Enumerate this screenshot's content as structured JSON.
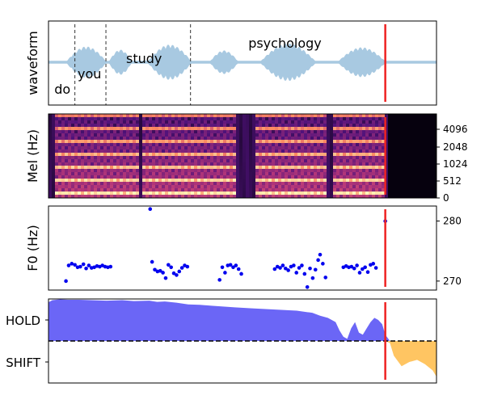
{
  "chart_data": [
    {
      "type": "area",
      "panel": "waveform",
      "ylabel": "waveform",
      "x_range": [
        0,
        1
      ],
      "y_range": [
        -1,
        1
      ],
      "words": [
        {
          "text": "do",
          "x": 0.015
        },
        {
          "text": "you",
          "x": 0.075
        },
        {
          "text": "study",
          "x": 0.2
        },
        {
          "text": "psychology",
          "x": 0.515
        }
      ],
      "word_boundaries": [
        0.068,
        0.148,
        0.366
      ],
      "current_position": 0.868,
      "colors": {
        "fill": "#a8c9e1",
        "boundary": "#333333",
        "cursor": "#ee2222"
      }
    },
    {
      "type": "heatmap",
      "panel": "mel-spectrogram",
      "ylabel": "Mel (Hz)",
      "y_ticks": [
        "0",
        "512",
        "1024",
        "2048",
        "4096"
      ],
      "current_position": 0.868,
      "colormap": "magma"
    },
    {
      "type": "scatter",
      "panel": "f0",
      "ylabel": "F0 (Hz)",
      "y_ticks": [
        270,
        280
      ],
      "ylim": [
        268.5,
        282.5
      ],
      "x_range": [
        0,
        1
      ],
      "points": [
        [
          0.045,
          270.0
        ],
        [
          0.052,
          272.6
        ],
        [
          0.06,
          272.9
        ],
        [
          0.068,
          272.7
        ],
        [
          0.075,
          272.3
        ],
        [
          0.082,
          272.4
        ],
        [
          0.09,
          272.8
        ],
        [
          0.097,
          272.1
        ],
        [
          0.104,
          272.6
        ],
        [
          0.111,
          272.2
        ],
        [
          0.118,
          272.3
        ],
        [
          0.125,
          272.5
        ],
        [
          0.132,
          272.4
        ],
        [
          0.139,
          272.6
        ],
        [
          0.146,
          272.4
        ],
        [
          0.153,
          272.3
        ],
        [
          0.16,
          272.4
        ],
        [
          0.262,
          282.0
        ],
        [
          0.267,
          273.2
        ],
        [
          0.274,
          271.9
        ],
        [
          0.281,
          271.6
        ],
        [
          0.288,
          271.7
        ],
        [
          0.295,
          271.4
        ],
        [
          0.302,
          270.5
        ],
        [
          0.309,
          272.7
        ],
        [
          0.316,
          272.3
        ],
        [
          0.323,
          271.3
        ],
        [
          0.33,
          271.0
        ],
        [
          0.337,
          271.6
        ],
        [
          0.344,
          272.2
        ],
        [
          0.351,
          272.6
        ],
        [
          0.358,
          272.4
        ],
        [
          0.441,
          270.2
        ],
        [
          0.448,
          272.3
        ],
        [
          0.455,
          271.4
        ],
        [
          0.462,
          272.6
        ],
        [
          0.469,
          272.7
        ],
        [
          0.476,
          272.3
        ],
        [
          0.483,
          272.6
        ],
        [
          0.49,
          272.0
        ],
        [
          0.497,
          271.2
        ],
        [
          0.583,
          272.0
        ],
        [
          0.59,
          272.4
        ],
        [
          0.597,
          272.2
        ],
        [
          0.604,
          272.6
        ],
        [
          0.611,
          272.1
        ],
        [
          0.618,
          271.8
        ],
        [
          0.625,
          272.4
        ],
        [
          0.632,
          272.6
        ],
        [
          0.639,
          271.4
        ],
        [
          0.646,
          272.2
        ],
        [
          0.653,
          272.6
        ],
        [
          0.66,
          271.2
        ],
        [
          0.667,
          269.0
        ],
        [
          0.674,
          272.1
        ],
        [
          0.681,
          270.5
        ],
        [
          0.688,
          271.9
        ],
        [
          0.695,
          273.5
        ],
        [
          0.7,
          274.4
        ],
        [
          0.707,
          272.9
        ],
        [
          0.714,
          270.6
        ],
        [
          0.76,
          272.3
        ],
        [
          0.767,
          272.5
        ],
        [
          0.774,
          272.3
        ],
        [
          0.781,
          272.4
        ],
        [
          0.788,
          272.1
        ],
        [
          0.795,
          272.6
        ],
        [
          0.802,
          271.4
        ],
        [
          0.809,
          272.0
        ],
        [
          0.816,
          272.3
        ],
        [
          0.823,
          271.5
        ],
        [
          0.83,
          272.7
        ],
        [
          0.837,
          272.9
        ],
        [
          0.844,
          272.2
        ],
        [
          0.868,
          280.0
        ]
      ],
      "current_position": 0.868,
      "colors": {
        "points": "#0000ee",
        "cursor": "#ee2222"
      }
    },
    {
      "type": "area",
      "panel": "turn-taking",
      "y_tick_labels": [
        "HOLD",
        "SHIFT"
      ],
      "x_range": [
        0,
        1
      ],
      "ylim": [
        -1,
        1
      ],
      "threshold": 0,
      "series": [
        {
          "x": [
            0.0,
            0.01,
            0.03,
            0.05,
            0.08,
            0.11,
            0.15,
            0.19,
            0.22,
            0.26,
            0.28,
            0.3,
            0.33,
            0.36,
            0.39,
            0.42,
            0.45,
            0.48,
            0.52,
            0.56,
            0.6,
            0.64,
            0.68,
            0.7,
            0.72,
            0.74,
            0.75,
            0.76,
            0.77,
            0.78,
            0.79,
            0.8,
            0.81,
            0.82,
            0.83,
            0.84,
            0.85,
            0.86,
            0.868,
            0.88,
            0.89,
            0.91,
            0.93,
            0.95,
            0.97,
            0.99,
            1.0
          ],
          "values": [
            0.92,
            0.97,
            0.99,
            0.98,
            0.98,
            0.97,
            0.96,
            0.97,
            0.95,
            0.96,
            0.93,
            0.94,
            0.91,
            0.87,
            0.86,
            0.84,
            0.82,
            0.8,
            0.78,
            0.76,
            0.74,
            0.72,
            0.67,
            0.6,
            0.55,
            0.45,
            0.25,
            0.1,
            0.05,
            0.3,
            0.45,
            0.2,
            0.15,
            0.3,
            0.45,
            0.55,
            0.5,
            0.4,
            0.15,
            -0.05,
            -0.35,
            -0.6,
            -0.5,
            -0.45,
            -0.55,
            -0.7,
            -0.85
          ]
        }
      ],
      "current_position": 0.868,
      "colors": {
        "hold": "#5b55f5",
        "shift": "#ffc25a",
        "threshold": "#000000",
        "cursor": "#ee2222"
      }
    }
  ]
}
